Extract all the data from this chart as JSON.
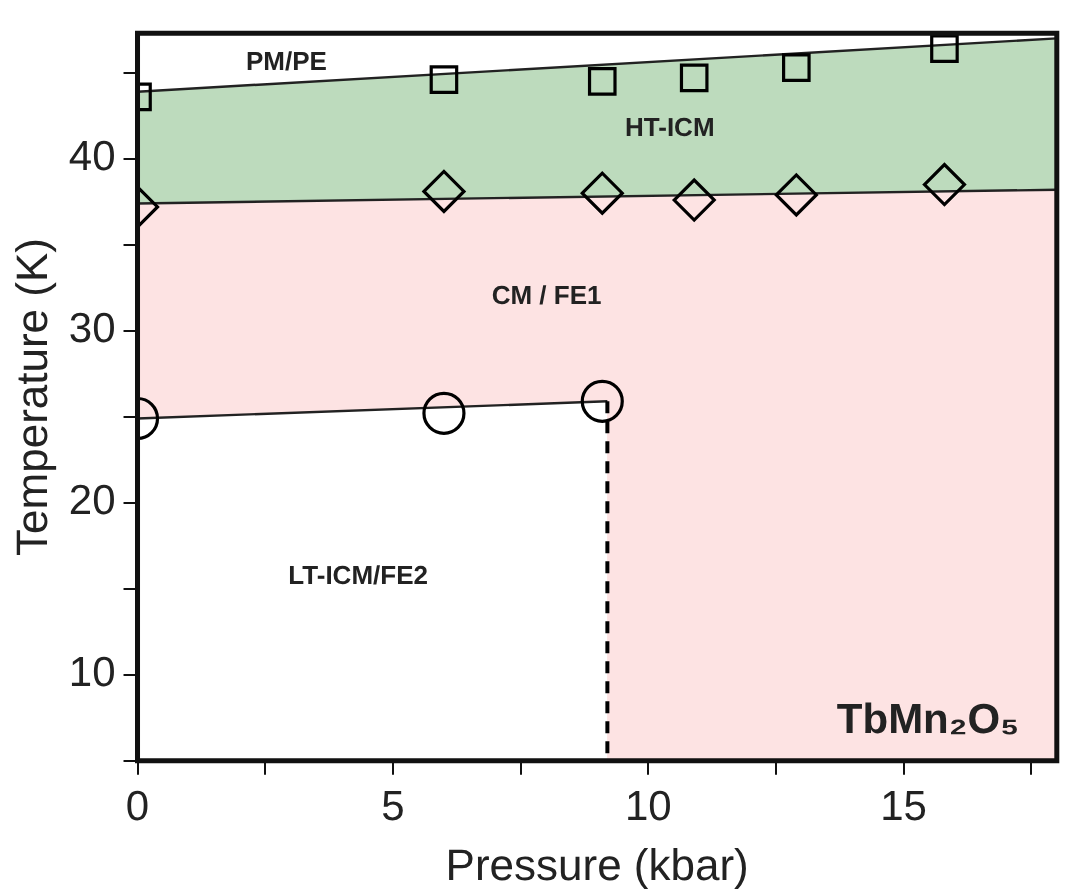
{
  "chart_data": {
    "type": "scatter",
    "xlabel": "Pressure (kbar)",
    "ylabel": "Temperature (K)",
    "xlim": [
      0,
      18
    ],
    "ylim": [
      5,
      47.3
    ],
    "xticks": [
      0,
      {
        "value": 2.5,
        "label": null
      },
      5,
      {
        "value": 7.5,
        "label": null
      },
      10,
      {
        "value": 12.5,
        "label": null
      },
      15,
      {
        "value": 17.5,
        "label": null
      }
    ],
    "yticks": [
      {
        "value": 5,
        "label": null
      },
      10,
      {
        "value": 15,
        "label": null
      },
      20,
      {
        "value": 25,
        "label": null
      },
      30,
      {
        "value": 35,
        "label": null
      },
      40,
      {
        "value": 45,
        "label": null
      }
    ],
    "grid": false,
    "series": [
      {
        "type": "area",
        "color": "#bddbbd",
        "x": [
          0,
          18
        ],
        "values": [
          43.9,
          47.0
        ]
      },
      {
        "type": "area",
        "color": "#fde3e3",
        "x": [
          0,
          18
        ],
        "values": [
          37.4,
          38.2
        ]
      },
      {
        "type": "area",
        "color": "#ffffff",
        "x": [
          0,
          9.2
        ],
        "values": [
          24.9,
          25.9
        ]
      },
      {
        "type": "line",
        "color": "#000000",
        "line_style": "dashed",
        "x": [
          9.2,
          9.2
        ],
        "values": [
          25.9,
          5
        ]
      },
      {
        "color": "#000000",
        "marker": "square",
        "x": [
          0,
          6,
          9.1,
          10.9,
          12.9,
          15.8
        ],
        "values": [
          43.6,
          44.6,
          44.5,
          44.7,
          45.3,
          46.4
        ]
      },
      {
        "color": "#000000",
        "marker": "diamond",
        "x": [
          0,
          6,
          9.1,
          10.9,
          12.9,
          15.8
        ],
        "values": [
          37.2,
          38.1,
          38.0,
          37.6,
          37.9,
          38.5
        ]
      },
      {
        "color": "#000000",
        "marker": "circle",
        "x": [
          0,
          6,
          9.1
        ],
        "values": [
          24.9,
          25.2,
          25.9
        ]
      }
    ],
    "annotations": [
      "PM/PE",
      "HT-ICM",
      "CM / FE1",
      "LT-ICM/FE2",
      "TbMn₂O₅"
    ]
  }
}
